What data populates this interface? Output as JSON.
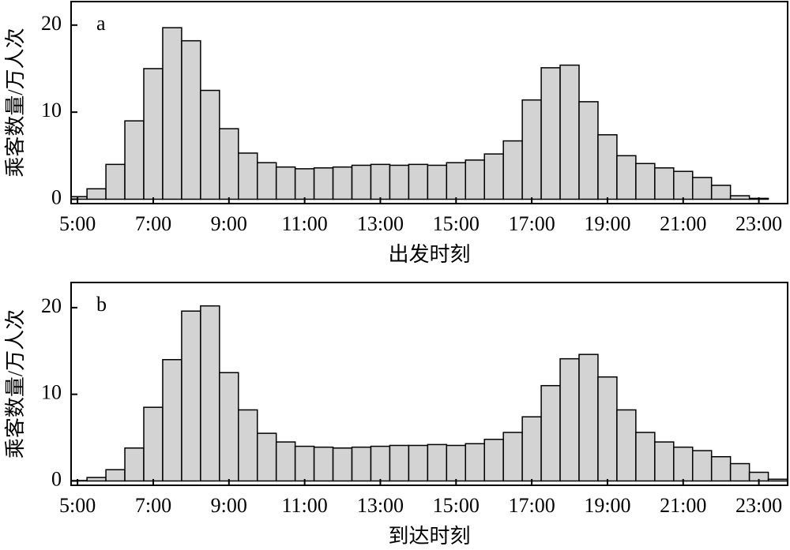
{
  "chart_data": [
    {
      "type": "histogram",
      "label": "a",
      "xlabel": "出发时刻",
      "ylabel": "乘客数量/万人次",
      "color": "#d3d3d3",
      "bins": [
        4.75,
        5.25,
        5.75,
        6.25,
        6.75,
        7.25,
        7.75,
        8.25,
        8.75,
        9.25,
        9.75,
        10.25,
        10.75,
        11.25,
        11.75,
        12.25,
        12.75,
        13.25,
        13.75,
        14.25,
        14.75,
        15.25,
        15.75,
        16.25,
        16.75,
        17.25,
        17.75,
        18.25,
        18.75,
        19.25,
        19.75,
        20.25,
        20.75,
        21.25,
        21.75,
        22.25,
        22.75,
        23.25
      ],
      "values": [
        0.3,
        1.2,
        4.0,
        9.0,
        15.0,
        19.7,
        18.2,
        12.5,
        8.1,
        5.3,
        4.2,
        3.7,
        3.5,
        3.6,
        3.7,
        3.9,
        4.0,
        3.9,
        4.0,
        3.9,
        4.2,
        4.5,
        5.2,
        6.7,
        11.4,
        15.1,
        15.4,
        11.2,
        7.4,
        5.0,
        4.1,
        3.6,
        3.2,
        2.5,
        1.6,
        0.4,
        0.1
      ],
      "xlim": [
        4.83,
        23.76
      ],
      "ylim": [
        -0.5,
        22.7
      ],
      "xticks": [
        {
          "value": 5,
          "label": "5:00"
        },
        {
          "value": 7,
          "label": "7:00"
        },
        {
          "value": 9,
          "label": "9:00"
        },
        {
          "value": 11,
          "label": "11:00"
        },
        {
          "value": 13,
          "label": "13:00"
        },
        {
          "value": 15,
          "label": "15:00"
        },
        {
          "value": 17,
          "label": "17:00"
        },
        {
          "value": 19,
          "label": "19:00"
        },
        {
          "value": 21,
          "label": "21:00"
        },
        {
          "value": 23,
          "label": "23:00"
        }
      ],
      "yticks": [
        0,
        10,
        20
      ]
    },
    {
      "type": "histogram",
      "label": "b",
      "xlabel": "到达时刻",
      "ylabel": "乘客数量/万人次",
      "color": "#d3d3d3",
      "bins": [
        4.75,
        5.25,
        5.75,
        6.25,
        6.75,
        7.25,
        7.75,
        8.25,
        8.75,
        9.25,
        9.75,
        10.25,
        10.75,
        11.25,
        11.75,
        12.25,
        12.75,
        13.25,
        13.75,
        14.25,
        14.75,
        15.25,
        15.75,
        16.25,
        16.75,
        17.25,
        17.75,
        18.25,
        18.75,
        19.25,
        19.75,
        20.25,
        20.75,
        21.25,
        21.75,
        22.25,
        22.75,
        23.25,
        23.75
      ],
      "values": [
        0.05,
        0.4,
        1.3,
        3.8,
        8.5,
        14.0,
        19.6,
        20.2,
        12.5,
        8.2,
        5.5,
        4.5,
        4.0,
        3.9,
        3.8,
        3.9,
        4.0,
        4.1,
        4.1,
        4.2,
        4.1,
        4.3,
        4.8,
        5.6,
        7.4,
        11.0,
        14.1,
        14.6,
        12.0,
        8.2,
        5.6,
        4.5,
        3.9,
        3.5,
        2.8,
        2.0,
        1.0,
        0.2
      ],
      "xlim": [
        4.83,
        23.76
      ],
      "ylim": [
        -0.5,
        22.9
      ],
      "xticks": [
        {
          "value": 5,
          "label": "5:00"
        },
        {
          "value": 7,
          "label": "7:00"
        },
        {
          "value": 9,
          "label": "9:00"
        },
        {
          "value": 11,
          "label": "11:00"
        },
        {
          "value": 13,
          "label": "13:00"
        },
        {
          "value": 15,
          "label": "15:00"
        },
        {
          "value": 17,
          "label": "17:00"
        },
        {
          "value": 19,
          "label": "19:00"
        },
        {
          "value": 21,
          "label": "21:00"
        },
        {
          "value": 23,
          "label": "23:00"
        }
      ],
      "yticks": [
        0,
        10,
        20
      ]
    }
  ]
}
